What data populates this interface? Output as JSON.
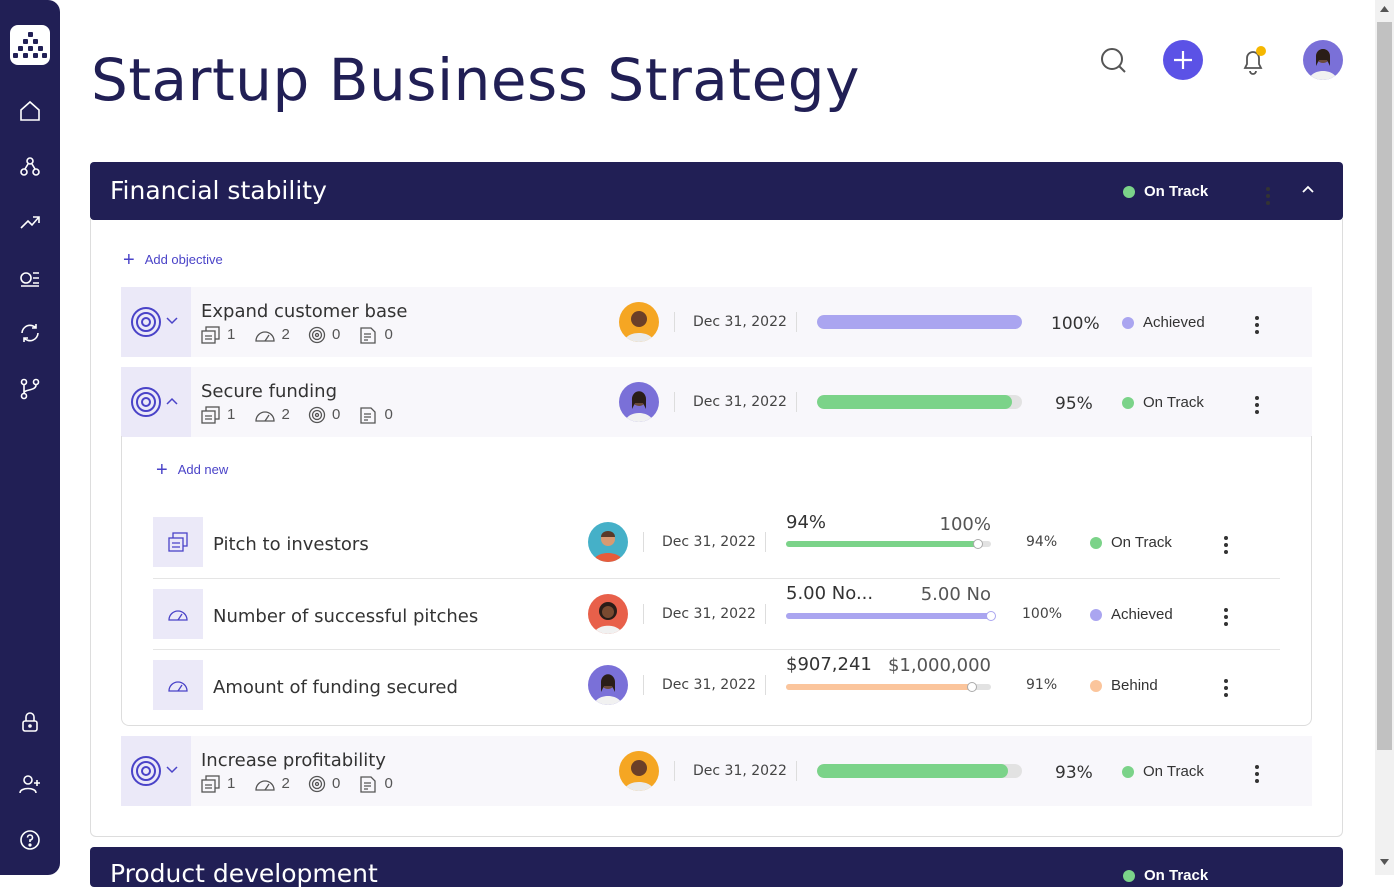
{
  "page": {
    "title": "Startup Business Strategy"
  },
  "sidebar": {
    "items": [
      "home-icon",
      "people-icon",
      "trending-up-icon",
      "list-icon",
      "refresh-icon",
      "branch-icon",
      "lock-icon",
      "add-user-icon",
      "help-icon"
    ]
  },
  "topbar": {
    "icons": [
      "search-icon",
      "plus-icon",
      "bell-icon",
      "avatar"
    ]
  },
  "colors": {
    "navy": "#211f55",
    "accent": "#5b52e6",
    "green": "#7bd389",
    "purple": "#aaa5f0",
    "orange": "#fbc59c"
  },
  "sections": [
    {
      "title": "Financial stability",
      "status": "On Track",
      "add_objective": "Add objective",
      "objectives": [
        {
          "name": "Expand customer base",
          "counts": [
            "1",
            "2",
            "0",
            "0"
          ],
          "date": "Dec 31, 2022",
          "progress": 1.0,
          "percent": "100%",
          "status": "Achieved"
        },
        {
          "name": "Secure funding",
          "counts": [
            "1",
            "2",
            "0",
            "0"
          ],
          "date": "Dec 31, 2022",
          "progress": 0.95,
          "percent": "95%",
          "status": "On Track",
          "add_new": "Add new",
          "key_results": [
            {
              "name": "Pitch to investors",
              "date": "Dec 31, 2022",
              "current": "94%",
              "target": "100%",
              "progress": 0.94,
              "percent": "94%",
              "status": "On Track"
            },
            {
              "name": "Number of successful pitches",
              "date": "Dec 31, 2022",
              "current": "5.00 No...",
              "target": "5.00 No",
              "progress": 1.0,
              "percent": "100%",
              "status": "Achieved"
            },
            {
              "name": "Amount of funding secured",
              "date": "Dec 31, 2022",
              "current": "$907,241",
              "target": "$1,000,000",
              "progress": 0.91,
              "percent": "91%",
              "status": "Behind"
            }
          ]
        },
        {
          "name": "Increase profitability",
          "counts": [
            "1",
            "2",
            "0",
            "0"
          ],
          "date": "Dec 31, 2022",
          "progress": 0.93,
          "percent": "93%",
          "status": "On Track"
        }
      ]
    },
    {
      "title": "Product development",
      "status": "On Track"
    }
  ]
}
